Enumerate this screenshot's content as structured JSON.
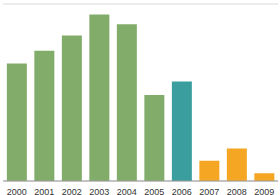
{
  "chart_data": {
    "type": "bar",
    "categories": [
      "2000",
      "2001",
      "2002",
      "2003",
      "2004",
      "2005",
      "2006",
      "2007",
      "2008",
      "2009"
    ],
    "values": [
      3.32,
      3.68,
      4.11,
      4.7,
      4.43,
      2.43,
      2.81,
      0.57,
      0.92,
      0.22
    ],
    "colors": [
      "#82ac6a",
      "#82ac6a",
      "#82ac6a",
      "#82ac6a",
      "#82ac6a",
      "#82ac6a",
      "#3a9e9e",
      "#f5a623",
      "#f5a623",
      "#f5a623"
    ],
    "ylim": [
      0,
      5
    ],
    "yticks": [
      0,
      1,
      2,
      3,
      4,
      5
    ],
    "grid": true,
    "tick_labels": "x"
  }
}
